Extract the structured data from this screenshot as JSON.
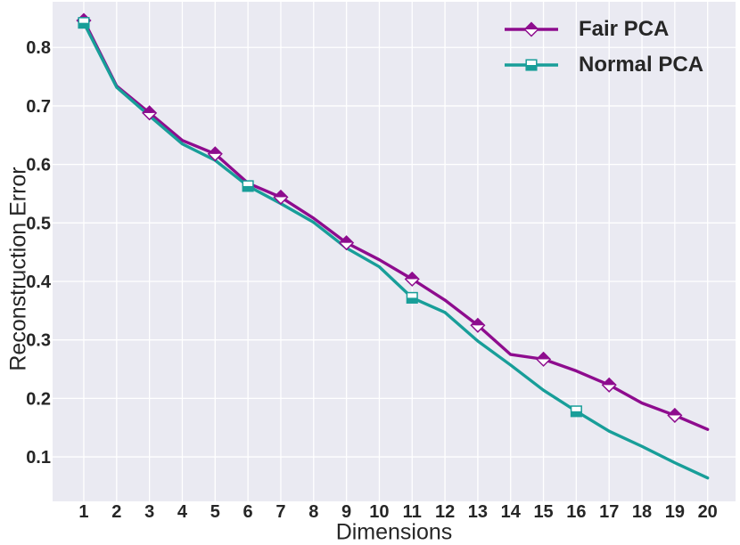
{
  "figure": {
    "background": "#ffffff"
  },
  "chart_data": {
    "type": "line",
    "title": "",
    "xlabel": "Dimensions",
    "ylabel": "Reconstruction Error",
    "plot_background": "#eaeaf2",
    "grid_color": "#ffffff",
    "text_color": "#262626",
    "grid": true,
    "legend_position": "upper right",
    "xlim": [
      0.05,
      20.85
    ],
    "ylim": [
      0.024,
      0.878
    ],
    "xticks": [
      1,
      2,
      3,
      4,
      5,
      6,
      7,
      8,
      9,
      10,
      11,
      12,
      13,
      14,
      15,
      16,
      17,
      18,
      19,
      20
    ],
    "yticks": [
      0.1,
      0.2,
      0.3,
      0.4,
      0.5,
      0.6,
      0.7,
      0.8
    ],
    "x": [
      1,
      2,
      3,
      4,
      5,
      6,
      7,
      8,
      9,
      10,
      11,
      12,
      13,
      14,
      15,
      16,
      17,
      18,
      19,
      20
    ],
    "series": [
      {
        "name": "Fair PCA",
        "color": "#8e0c8e",
        "marker": "diamond-top-filled",
        "marker_dims": [
          1,
          3,
          5,
          7,
          9,
          11,
          13,
          15,
          17,
          19
        ],
        "values": [
          0.846,
          0.734,
          0.688,
          0.641,
          0.618,
          0.568,
          0.544,
          0.508,
          0.466,
          0.437,
          0.404,
          0.368,
          0.325,
          0.275,
          0.267,
          0.247,
          0.223,
          0.192,
          0.171,
          0.147
        ]
      },
      {
        "name": "Normal PCA",
        "color": "#189e99",
        "marker": "square-bottom-filled",
        "marker_dims": [
          1,
          6,
          11,
          16
        ],
        "values": [
          0.842,
          0.732,
          0.683,
          0.635,
          0.607,
          0.563,
          0.533,
          0.501,
          0.457,
          0.425,
          0.372,
          0.347,
          0.298,
          0.257,
          0.214,
          0.178,
          0.144,
          0.118,
          0.09,
          0.064
        ]
      }
    ]
  }
}
